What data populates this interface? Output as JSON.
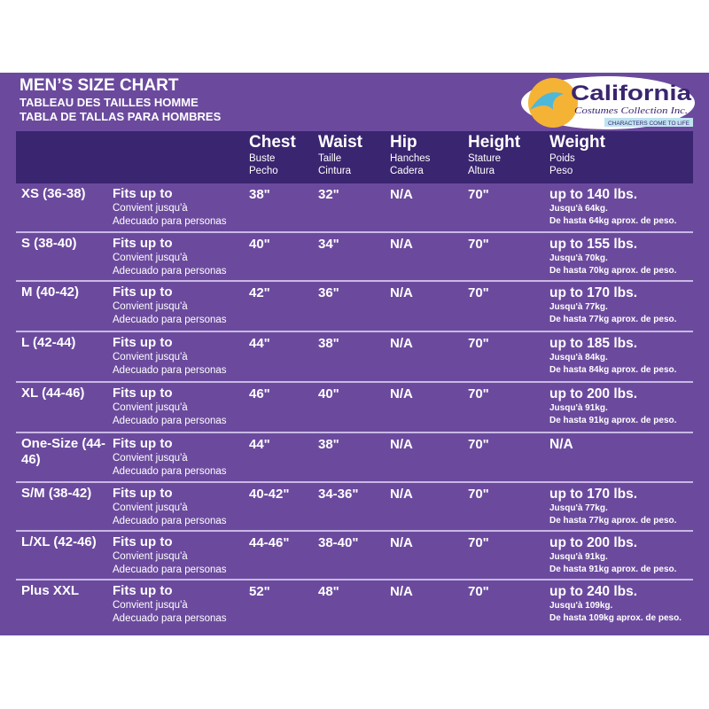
{
  "title": {
    "main": "MEN’S SIZE CHART",
    "fr": "TABLEAU DES TAILLES HOMME",
    "es": "TABLA DE TALLAS PARA HOMBRES"
  },
  "logo": {
    "name": "California",
    "sub": "Costumes Collection Inc.",
    "tagline": "CHARACTERS COME TO LIFE"
  },
  "colors": {
    "panel": "#6b4a9e",
    "header": "#3a2570",
    "divider": "#c9b8e6",
    "logo_sun": "#f5b335"
  },
  "headers": [
    {
      "main": "Chest",
      "fr": "Buste",
      "es": "Pecho"
    },
    {
      "main": "Waist",
      "fr": "Taille",
      "es": "Cintura"
    },
    {
      "main": "Hip",
      "fr": "Hanches",
      "es": "Cadera"
    },
    {
      "main": "Height",
      "fr": "Stature",
      "es": "Altura"
    },
    {
      "main": "Weight",
      "fr": "Poids",
      "es": "Peso"
    }
  ],
  "fits": {
    "en": "Fits up to",
    "fr": "Convient jusqu'à",
    "es": "Adecuado para personas"
  },
  "rows": [
    {
      "size": "XS (36-38)",
      "chest": "38\"",
      "waist": "32\"",
      "hip": "N/A",
      "height": "70\"",
      "weight": "up to 140 lbs.",
      "weight_fr": "Jusqu'à 64kg.",
      "weight_es": "De hasta 64kg aprox. de peso."
    },
    {
      "size": "S (38-40)",
      "chest": "40\"",
      "waist": "34\"",
      "hip": "N/A",
      "height": "70\"",
      "weight": "up to 155 lbs.",
      "weight_fr": "Jusqu'à 70kg.",
      "weight_es": "De hasta 70kg aprox. de peso."
    },
    {
      "size": "M (40-42)",
      "chest": "42\"",
      "waist": "36\"",
      "hip": "N/A",
      "height": "70\"",
      "weight": "up to 170 lbs.",
      "weight_fr": "Jusqu'à 77kg.",
      "weight_es": "De hasta 77kg aprox. de peso."
    },
    {
      "size": "L (42-44)",
      "chest": "44\"",
      "waist": "38\"",
      "hip": "N/A",
      "height": "70\"",
      "weight": "up to 185 lbs.",
      "weight_fr": "Jusqu'à 84kg.",
      "weight_es": "De hasta 84kg aprox. de peso."
    },
    {
      "size": "XL (44-46)",
      "chest": "46\"",
      "waist": "40\"",
      "hip": "N/A",
      "height": "70\"",
      "weight": "up to 200 lbs.",
      "weight_fr": "Jusqu'à 91kg.",
      "weight_es": "De hasta 91kg aprox. de peso."
    },
    {
      "size": "One-Size (44-46)",
      "chest": "44\"",
      "waist": "38\"",
      "hip": "N/A",
      "height": "70\"",
      "weight": "N/A",
      "weight_fr": "",
      "weight_es": ""
    },
    {
      "size": "S/M (38-42)",
      "chest": "40-42\"",
      "waist": "34-36\"",
      "hip": "N/A",
      "height": "70\"",
      "weight": "up to 170 lbs.",
      "weight_fr": "Jusqu'à 77kg.",
      "weight_es": "De hasta 77kg aprox. de peso."
    },
    {
      "size": "L/XL (42-46)",
      "chest": "44-46\"",
      "waist": "38-40\"",
      "hip": "N/A",
      "height": "70\"",
      "weight": "up to 200 lbs.",
      "weight_fr": "Jusqu'à 91kg.",
      "weight_es": "De hasta 91kg aprox. de peso."
    },
    {
      "size": "Plus XXL",
      "chest": "52\"",
      "waist": "48\"",
      "hip": "N/A",
      "height": "70\"",
      "weight": "up to 240 lbs.",
      "weight_fr": "Jusqu'à 109kg.",
      "weight_es": "De hasta 109kg aprox. de peso."
    }
  ]
}
